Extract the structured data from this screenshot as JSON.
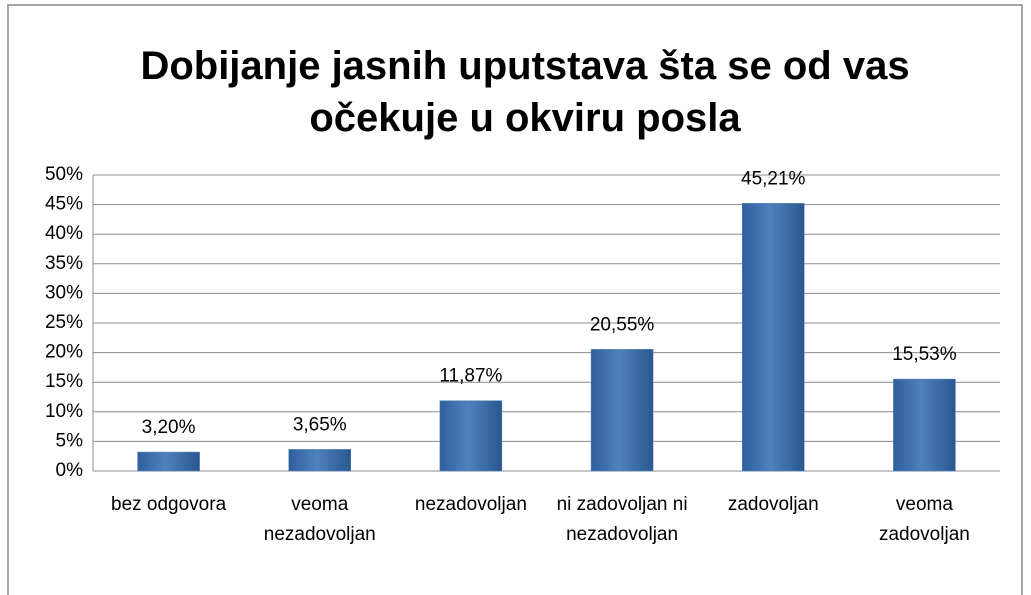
{
  "chart_data": {
    "type": "bar",
    "title": "Dobijanje jasnih uputstava šta se od vas očekuje u okviru posla",
    "categories": [
      "bez odgovora",
      "veoma nezadovoljan",
      "nezadovoljan",
      "ni zadovoljan ni nezadovoljan",
      "zadovoljan",
      "veoma zadovoljan"
    ],
    "values": [
      3.2,
      3.65,
      11.87,
      20.55,
      45.21,
      15.53
    ],
    "value_labels": [
      "3,20%",
      "3,65%",
      "11,87%",
      "20,55%",
      "45,21%",
      "15,53%"
    ],
    "color": "#4f81bd",
    "ylim": [
      0,
      50
    ],
    "yticks": [
      {
        "value": 0,
        "label": "0%"
      },
      {
        "value": 5,
        "label": "5%"
      },
      {
        "value": 10,
        "label": "10%"
      },
      {
        "value": 15,
        "label": "15%"
      },
      {
        "value": 20,
        "label": "20%"
      },
      {
        "value": 25,
        "label": "25%"
      },
      {
        "value": 30,
        "label": "30%"
      },
      {
        "value": 35,
        "label": "35%"
      },
      {
        "value": 40,
        "label": "40%"
      },
      {
        "value": 45,
        "label": "45%"
      },
      {
        "value": 50,
        "label": "50%"
      }
    ],
    "grid": true
  }
}
